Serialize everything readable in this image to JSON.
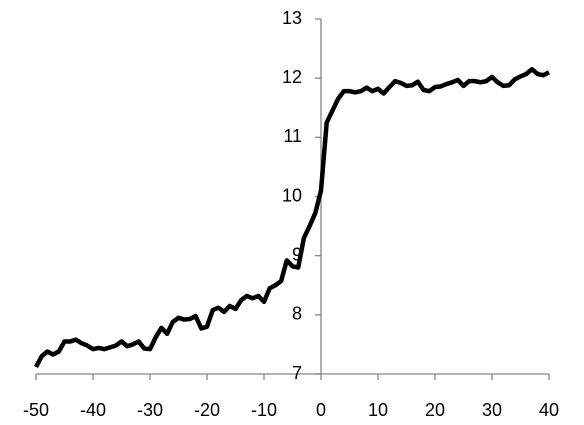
{
  "chart_data": {
    "type": "line",
    "color": "#000000",
    "x": [
      -50,
      -49,
      -48,
      -47,
      -46,
      -45,
      -44,
      -43,
      -42,
      -41,
      -40,
      -39,
      -38,
      -37,
      -36,
      -35,
      -34,
      -33,
      -32,
      -31,
      -30,
      -29,
      -28,
      -27,
      -26,
      -25,
      -24,
      -23,
      -22,
      -21,
      -20,
      -19,
      -18,
      -17,
      -16,
      -15,
      -14,
      -13,
      -12,
      -11,
      -10,
      -9,
      -8,
      -7,
      -6,
      -5,
      -4,
      -3,
      -2,
      -1,
      0,
      1,
      2,
      3,
      4,
      5,
      6,
      7,
      8,
      9,
      10,
      11,
      12,
      13,
      14,
      15,
      16,
      17,
      18,
      19,
      20,
      21,
      22,
      23,
      24,
      25,
      26,
      27,
      28,
      29,
      30,
      31,
      32,
      33,
      34,
      35,
      36,
      37,
      38,
      39,
      40
    ],
    "values": [
      7.12,
      7.3,
      7.38,
      7.33,
      7.38,
      7.55,
      7.55,
      7.58,
      7.52,
      7.48,
      7.42,
      7.44,
      7.42,
      7.45,
      7.48,
      7.55,
      7.47,
      7.5,
      7.55,
      7.43,
      7.42,
      7.62,
      7.78,
      7.68,
      7.88,
      7.95,
      7.92,
      7.93,
      7.98,
      7.77,
      7.8,
      8.08,
      8.12,
      8.05,
      8.15,
      8.1,
      8.25,
      8.32,
      8.28,
      8.32,
      8.22,
      8.45,
      8.5,
      8.57,
      8.92,
      8.82,
      8.8,
      9.3,
      9.5,
      9.72,
      10.1,
      11.25,
      11.45,
      11.65,
      11.78,
      11.78,
      11.76,
      11.78,
      11.84,
      11.78,
      11.82,
      11.74,
      11.85,
      11.95,
      11.92,
      11.87,
      11.88,
      11.94,
      11.8,
      11.78,
      11.85,
      11.86,
      11.9,
      11.93,
      11.97,
      11.87,
      11.95,
      11.95,
      11.93,
      11.95,
      12.02,
      11.93,
      11.87,
      11.88,
      11.98,
      12.03,
      12.07,
      12.15,
      12.07,
      12.05,
      12.1
    ],
    "xlim": [
      -50,
      40
    ],
    "xticks": [
      -50,
      -40,
      -30,
      -20,
      -10,
      0,
      10,
      20,
      30,
      40
    ],
    "ylim": [
      7,
      13
    ],
    "yticks": [
      7,
      8,
      9,
      10,
      11,
      12,
      13
    ]
  }
}
